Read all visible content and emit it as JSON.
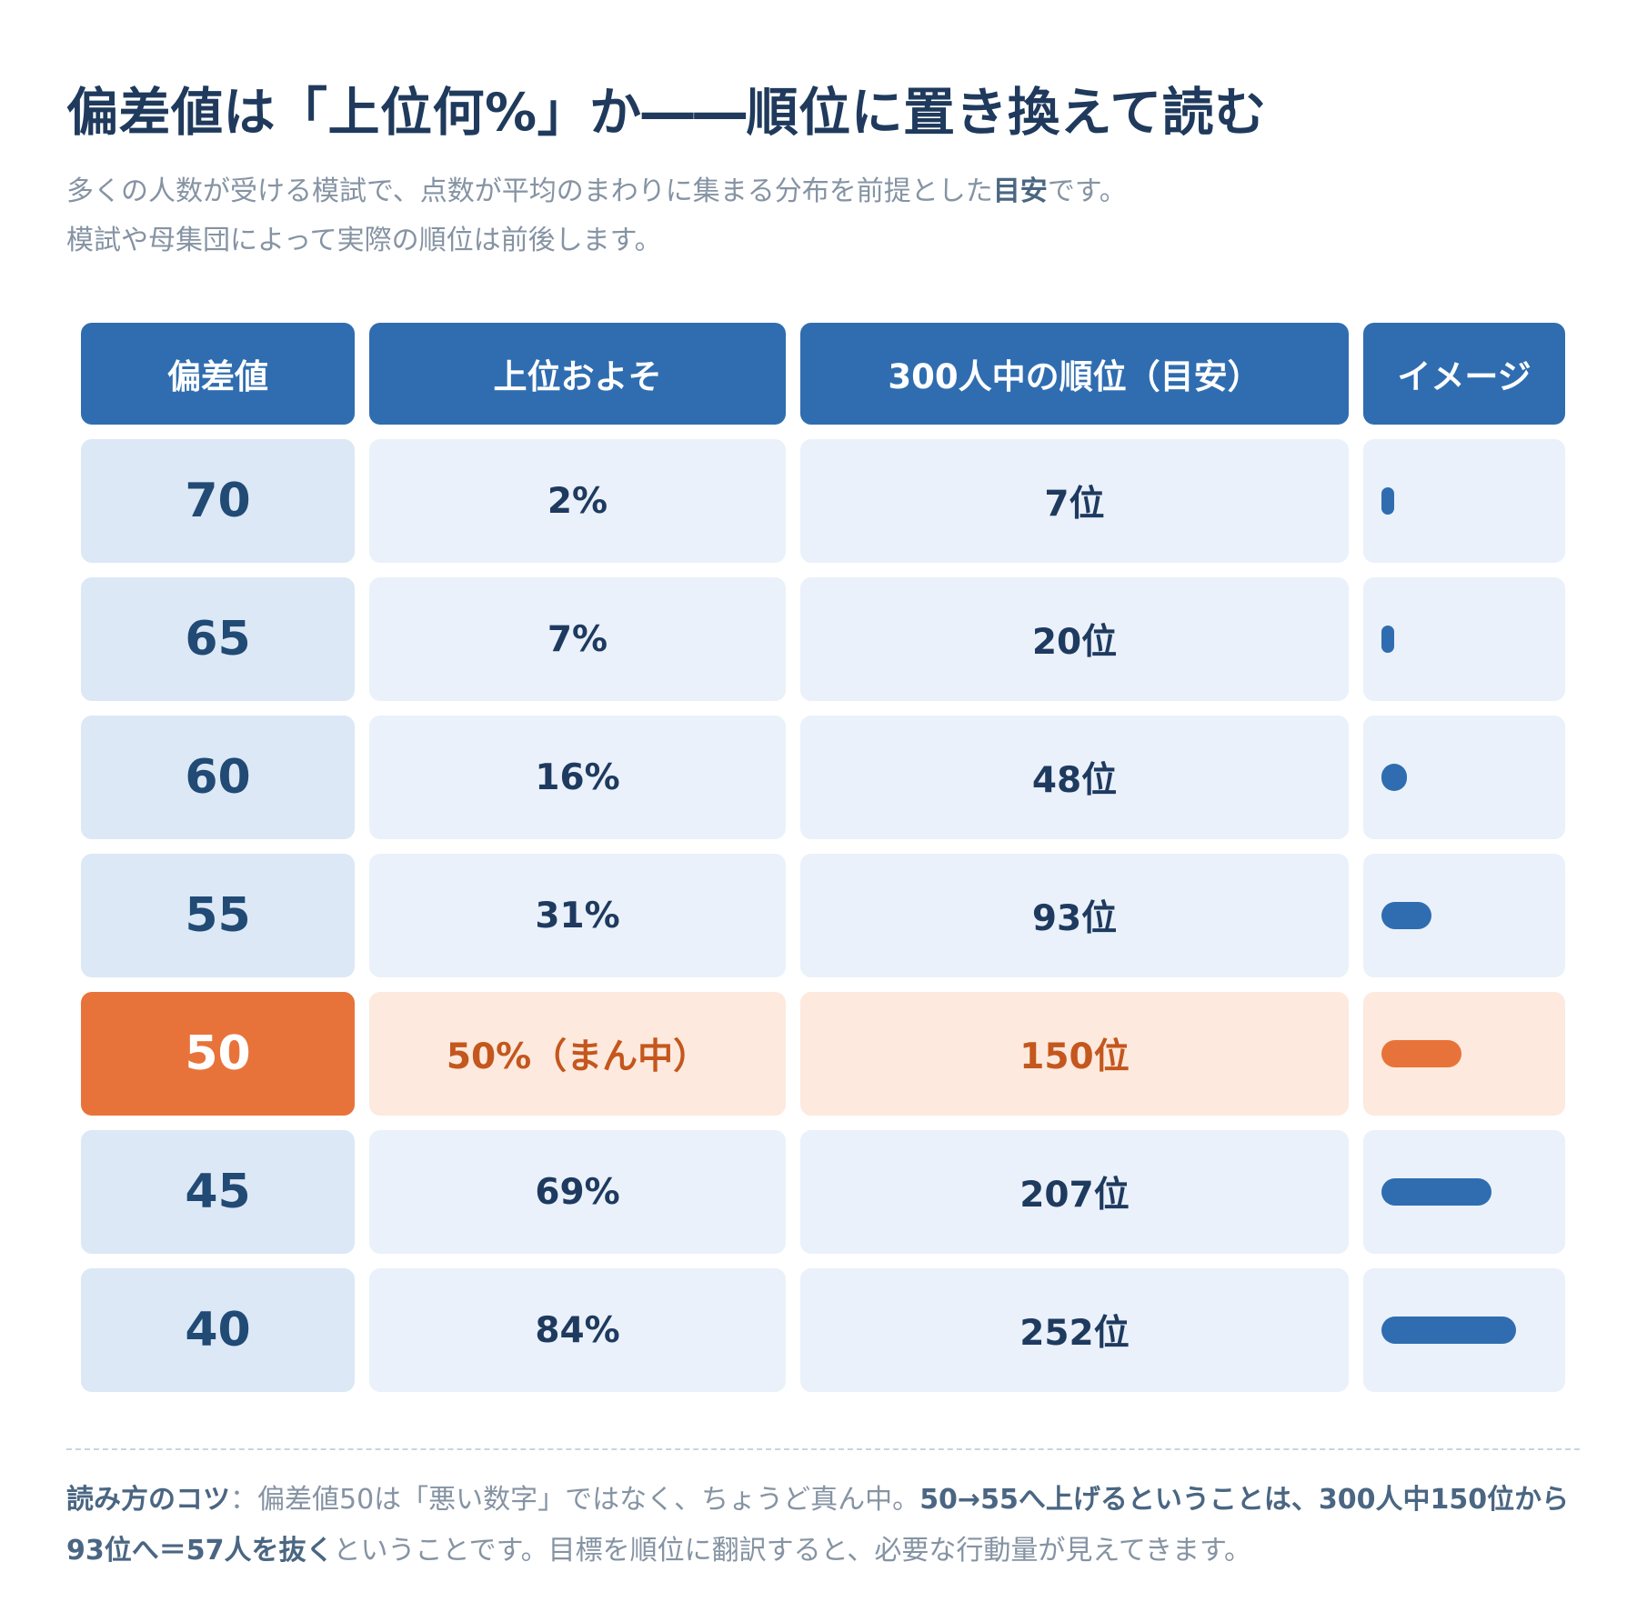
{
  "title": "偏差値は「上位何%」か――順位に置き換えて読む",
  "subtitle": {
    "line1_before": "多くの人数が受ける模試で、点数が平均のまわりに集まる分布を前提とした",
    "line1_bold": "目安",
    "line1_after": "です。",
    "line2": "模試や母集団によって実際の順位は前後します。"
  },
  "table": {
    "headers": [
      "偏差値",
      "上位およそ",
      "300人中の順位（目安）",
      "イメージ"
    ],
    "rows": [
      {
        "deviation": "70",
        "top_percent": "2%",
        "rank": "7位",
        "bar_fraction": 0.02,
        "highlight": false
      },
      {
        "deviation": "65",
        "top_percent": "7%",
        "rank": "20位",
        "bar_fraction": 0.07,
        "highlight": false
      },
      {
        "deviation": "60",
        "top_percent": "16%",
        "rank": "48位",
        "bar_fraction": 0.16,
        "highlight": false
      },
      {
        "deviation": "55",
        "top_percent": "31%",
        "rank": "93位",
        "bar_fraction": 0.31,
        "highlight": false
      },
      {
        "deviation": "50",
        "top_percent": "50%（まん中）",
        "rank": "150位",
        "bar_fraction": 0.5,
        "highlight": true
      },
      {
        "deviation": "45",
        "top_percent": "69%",
        "rank": "207位",
        "bar_fraction": 0.69,
        "highlight": false
      },
      {
        "deviation": "40",
        "top_percent": "84%",
        "rank": "252位",
        "bar_fraction": 0.84,
        "highlight": false
      }
    ]
  },
  "colors": {
    "primary": "#2f6db0",
    "accent": "#e8733a",
    "cell_light": "#eaf1fa",
    "cell_highlight": "#fde9de"
  },
  "tip": {
    "label": "読み方のコツ",
    "sep": "：",
    "text1": "偏差値50は「悪い数字」ではなく、ちょうど真ん中。",
    "bold2": "50→55へ上げるということは、300人中150位から93位へ＝57人を抜く",
    "text3": "ということです。目標を順位に翻訳すると、必要な行動量が見えてきます。"
  }
}
